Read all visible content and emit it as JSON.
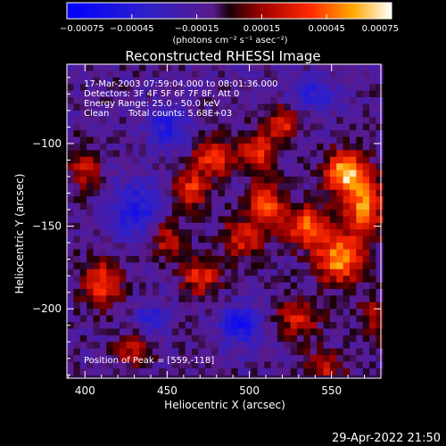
{
  "chart_data": {
    "type": "heatmap",
    "title": "Reconstructed RHESSI Image",
    "xlabel": "Heliocentric X (arcsec)",
    "ylabel": "Heliocentric Y (arcsec)",
    "xlim": [
      389,
      580
    ],
    "ylim": [
      -242,
      -52
    ],
    "x_ticks": [
      400,
      450,
      500,
      550
    ],
    "x_tick_labels": [
      "400",
      "450",
      "500",
      "550"
    ],
    "y_ticks": [
      -100,
      -150,
      -200
    ],
    "y_tick_labels": [
      "−100",
      "−150",
      "−200"
    ],
    "colorbar": {
      "min": -0.00075,
      "max": 0.00075,
      "ticks": [
        -0.00075,
        -0.00045,
        -0.00015,
        0.00015,
        0.00045,
        0.00075
      ],
      "tick_labels": [
        "−0.00075",
        "−0.00045",
        "−0.00015",
        "0.00015",
        "0.00045",
        "0.00075"
      ],
      "unit_label": "(photons cm⁻² s⁻¹ asec⁻²)",
      "colormap": "rhessi-blue-purple-red-yellow-white"
    },
    "annotations": {
      "time_range": "17-Mar-2003 07:59:04.000 to 08:01:36.000",
      "detectors": "Detectors: 3F 4F 5F 6F 7F 8F, Att 0",
      "energy_range": "Energy Range: 25.0 - 50.0 keV",
      "algorithm": "Clean",
      "total_counts": "Total counts: 5.68E+03",
      "peak_position": "Position of Peak = [559,-118]"
    },
    "peak": {
      "x": 559,
      "y": -118
    },
    "hot_spots": [
      {
        "x": 559,
        "y": -118,
        "value": 0.00075,
        "sx": 9,
        "sy": 9
      },
      {
        "x": 570,
        "y": -140,
        "value": 0.00062,
        "sx": 8,
        "sy": 12
      },
      {
        "x": 555,
        "y": -170,
        "value": 0.00066,
        "sx": 10,
        "sy": 10
      },
      {
        "x": 535,
        "y": -150,
        "value": 0.00055,
        "sx": 9,
        "sy": 9
      },
      {
        "x": 510,
        "y": -138,
        "value": 0.0005,
        "sx": 8,
        "sy": 10
      },
      {
        "x": 505,
        "y": -105,
        "value": 0.00048,
        "sx": 8,
        "sy": 8
      },
      {
        "x": 520,
        "y": -88,
        "value": 0.00042,
        "sx": 8,
        "sy": 7
      },
      {
        "x": 478,
        "y": -108,
        "value": 0.0005,
        "sx": 8,
        "sy": 8
      },
      {
        "x": 465,
        "y": -128,
        "value": 0.00046,
        "sx": 7,
        "sy": 8
      },
      {
        "x": 495,
        "y": -158,
        "value": 0.0004,
        "sx": 9,
        "sy": 8
      },
      {
        "x": 470,
        "y": -180,
        "value": 0.00044,
        "sx": 8,
        "sy": 8
      },
      {
        "x": 450,
        "y": -158,
        "value": 0.00036,
        "sx": 7,
        "sy": 8
      },
      {
        "x": 410,
        "y": -185,
        "value": 0.00047,
        "sx": 9,
        "sy": 10
      },
      {
        "x": 400,
        "y": -115,
        "value": 0.00035,
        "sx": 7,
        "sy": 9
      },
      {
        "x": 530,
        "y": -205,
        "value": 0.0004,
        "sx": 9,
        "sy": 8
      },
      {
        "x": 545,
        "y": -235,
        "value": 0.00035,
        "sx": 9,
        "sy": 7
      },
      {
        "x": 430,
        "y": -225,
        "value": 0.0003,
        "sx": 8,
        "sy": 7
      },
      {
        "x": 575,
        "y": -205,
        "value": 0.0003,
        "sx": 6,
        "sy": 9
      }
    ],
    "cold_spots": [
      {
        "x": 430,
        "y": -140,
        "value": -0.0004,
        "sx": 10,
        "sy": 12
      },
      {
        "x": 495,
        "y": -210,
        "value": -0.00045,
        "sx": 9,
        "sy": 8
      },
      {
        "x": 450,
        "y": -90,
        "value": -0.00035,
        "sx": 9,
        "sy": 9
      },
      {
        "x": 440,
        "y": -205,
        "value": -0.0003,
        "sx": 7,
        "sy": 7
      },
      {
        "x": 540,
        "y": -70,
        "value": -0.0003,
        "sx": 10,
        "sy": 8
      }
    ]
  },
  "footer": {
    "timestamp": "29-Apr-2022 21:50"
  }
}
